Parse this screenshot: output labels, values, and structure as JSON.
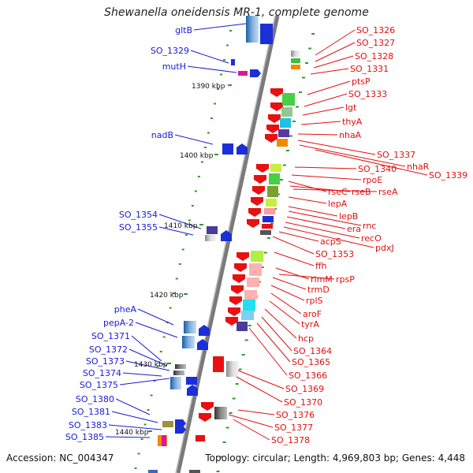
{
  "title": "Shewanella oneidensis MR-1, complete genome",
  "accession": "Accession: NC_004347",
  "topology": "Topology: circular; Length: 4,969,803 bp; Genes: 4,448",
  "colors": {
    "left_label": "#1a1ad6",
    "right_label": "#e01010",
    "backbone": "#808080",
    "tick": "#2f9a2f"
  },
  "ruler_ticks": [
    "1390 kbp",
    "1400 kbp",
    "1410 kbp",
    "1420 kbp",
    "1430 kbp",
    "1440 kbp"
  ],
  "left_labels": [
    "gltB",
    "SO_1329",
    "mutH",
    "nadB",
    "SO_1354",
    "SO_1355",
    "pheA",
    "pepA-2",
    "SO_1371",
    "SO_1372",
    "SO_1373",
    "SO_1374",
    "SO_1375",
    "SO_1380",
    "SO_1381",
    "SO_1383",
    "SO_1385"
  ],
  "right_labels": [
    "SO_1326",
    "SO_1327",
    "SO_1328",
    "SO_1331",
    "ptsP",
    "SO_1333",
    "lgt",
    "thyA",
    "nhaA",
    "SO_1337",
    "nhaR",
    "SO_1339",
    "SO_1340",
    "rpoE",
    "rseC",
    "rseB",
    "rseA",
    "lepA",
    "lepB",
    "rnc",
    "era",
    "recO",
    "pdxJ",
    "acpS",
    "SO_1353",
    "ffh",
    "rimM",
    "rpsP",
    "trmD",
    "rplS",
    "aroF",
    "tyrA",
    "hcp",
    "SO_1364",
    "SO_1365",
    "SO_1366",
    "SO_1369",
    "SO_1370",
    "SO_1376",
    "SO_1377",
    "SO_1378"
  ]
}
